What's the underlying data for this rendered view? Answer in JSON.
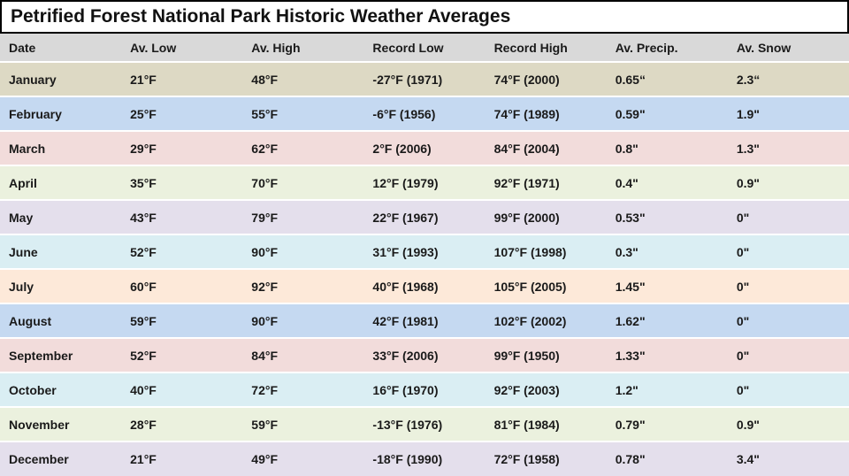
{
  "title": "Petrified Forest National Park Historic Weather Averages",
  "table": {
    "header": [
      "Date",
      "Av. Low",
      "Av. High",
      "Record Low",
      "Record High",
      "Av. Precip.",
      "Av. Snow"
    ],
    "rows": [
      [
        "January",
        "21°F",
        "48°F",
        "-27°F (1971)",
        "74°F (2000)",
        "0.65“",
        "2.3“"
      ],
      [
        "February",
        "25°F",
        "55°F",
        "-6°F (1956)",
        "74°F (1989)",
        "0.59\"",
        "1.9\""
      ],
      [
        "March",
        "29°F",
        "62°F",
        "2°F (2006)",
        "84°F (2004)",
        "0.8\"",
        "1.3\""
      ],
      [
        "April",
        "35°F",
        "70°F",
        "12°F (1979)",
        "92°F (1971)",
        "0.4\"",
        "0.9\""
      ],
      [
        "May",
        "43°F",
        "79°F",
        "22°F (1967)",
        "99°F (2000)",
        "0.53\"",
        "0\""
      ],
      [
        "June",
        "52°F",
        "90°F",
        "31°F (1993)",
        "107°F (1998)",
        "0.3\"",
        "0\""
      ],
      [
        "July",
        "60°F",
        "92°F",
        "40°F (1968)",
        "105°F (2005)",
        "1.45\"",
        "0\""
      ],
      [
        "August",
        "59°F",
        "90°F",
        "42°F (1981)",
        "102°F (2002)",
        "1.62\"",
        "0\""
      ],
      [
        "September",
        "52°F",
        "84°F",
        "33°F (2006)",
        "99°F (1950)",
        "1.33\"",
        "0\""
      ],
      [
        "October",
        "40°F",
        "72°F",
        "16°F (1970)",
        "92°F (2003)",
        "1.2\"",
        "0\""
      ],
      [
        "November",
        "28°F",
        "59°F",
        "-13°F (1976)",
        "81°F (1984)",
        "0.79\"",
        "0.9\""
      ],
      [
        "December",
        "21°F",
        "49°F",
        "-18°F (1990)",
        "72°F (1958)",
        "0.78\"",
        "3.4\""
      ]
    ]
  }
}
